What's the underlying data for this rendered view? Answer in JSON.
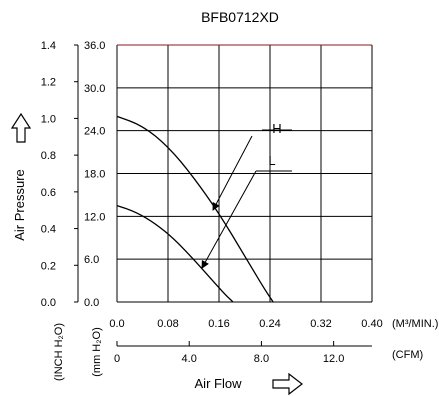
{
  "chart_data": {
    "type": "line",
    "title": "BFB0712XD",
    "xlabel": "Air Flow",
    "ylabel": "Air Pressure",
    "x_primary": {
      "unit": "(M³/MIN.)",
      "range": [
        0.0,
        0.4
      ],
      "ticks": [
        "0.0",
        "0.08",
        "0.16",
        "0.24",
        "0.32",
        "0.40"
      ]
    },
    "x_secondary": {
      "unit": "(CFM)",
      "ticks": [
        "0",
        "4.0",
        "8.0",
        "12.0"
      ]
    },
    "y_primary": {
      "unit": "(INCH H₂O)",
      "range": [
        0.0,
        1.4
      ],
      "ticks": [
        "0.0",
        "0.2",
        "0.4",
        "0.6",
        "0.8",
        "1.0",
        "1.2",
        "1.4"
      ]
    },
    "y_secondary": {
      "unit": "(mm H₂O)",
      "range": [
        0.0,
        36.0
      ],
      "ticks": [
        "0.0",
        "6.0",
        "12.0",
        "18.0",
        "24.0",
        "30.0",
        "36.0"
      ]
    },
    "grid": true,
    "series": [
      {
        "name": "H",
        "unit": "mmH2O",
        "x": [
          0.0,
          0.04,
          0.08,
          0.12,
          0.16,
          0.2,
          0.23,
          0.245
        ],
        "y": [
          26.0,
          24.7,
          21.8,
          17.5,
          12.4,
          6.5,
          2.0,
          0.0
        ]
      },
      {
        "name": "L",
        "unit": "mmH2O",
        "x": [
          0.0,
          0.03,
          0.06,
          0.09,
          0.12,
          0.15,
          0.17,
          0.182
        ],
        "y": [
          13.5,
          12.6,
          11.0,
          8.8,
          6.0,
          3.0,
          1.0,
          0.0
        ]
      }
    ]
  }
}
